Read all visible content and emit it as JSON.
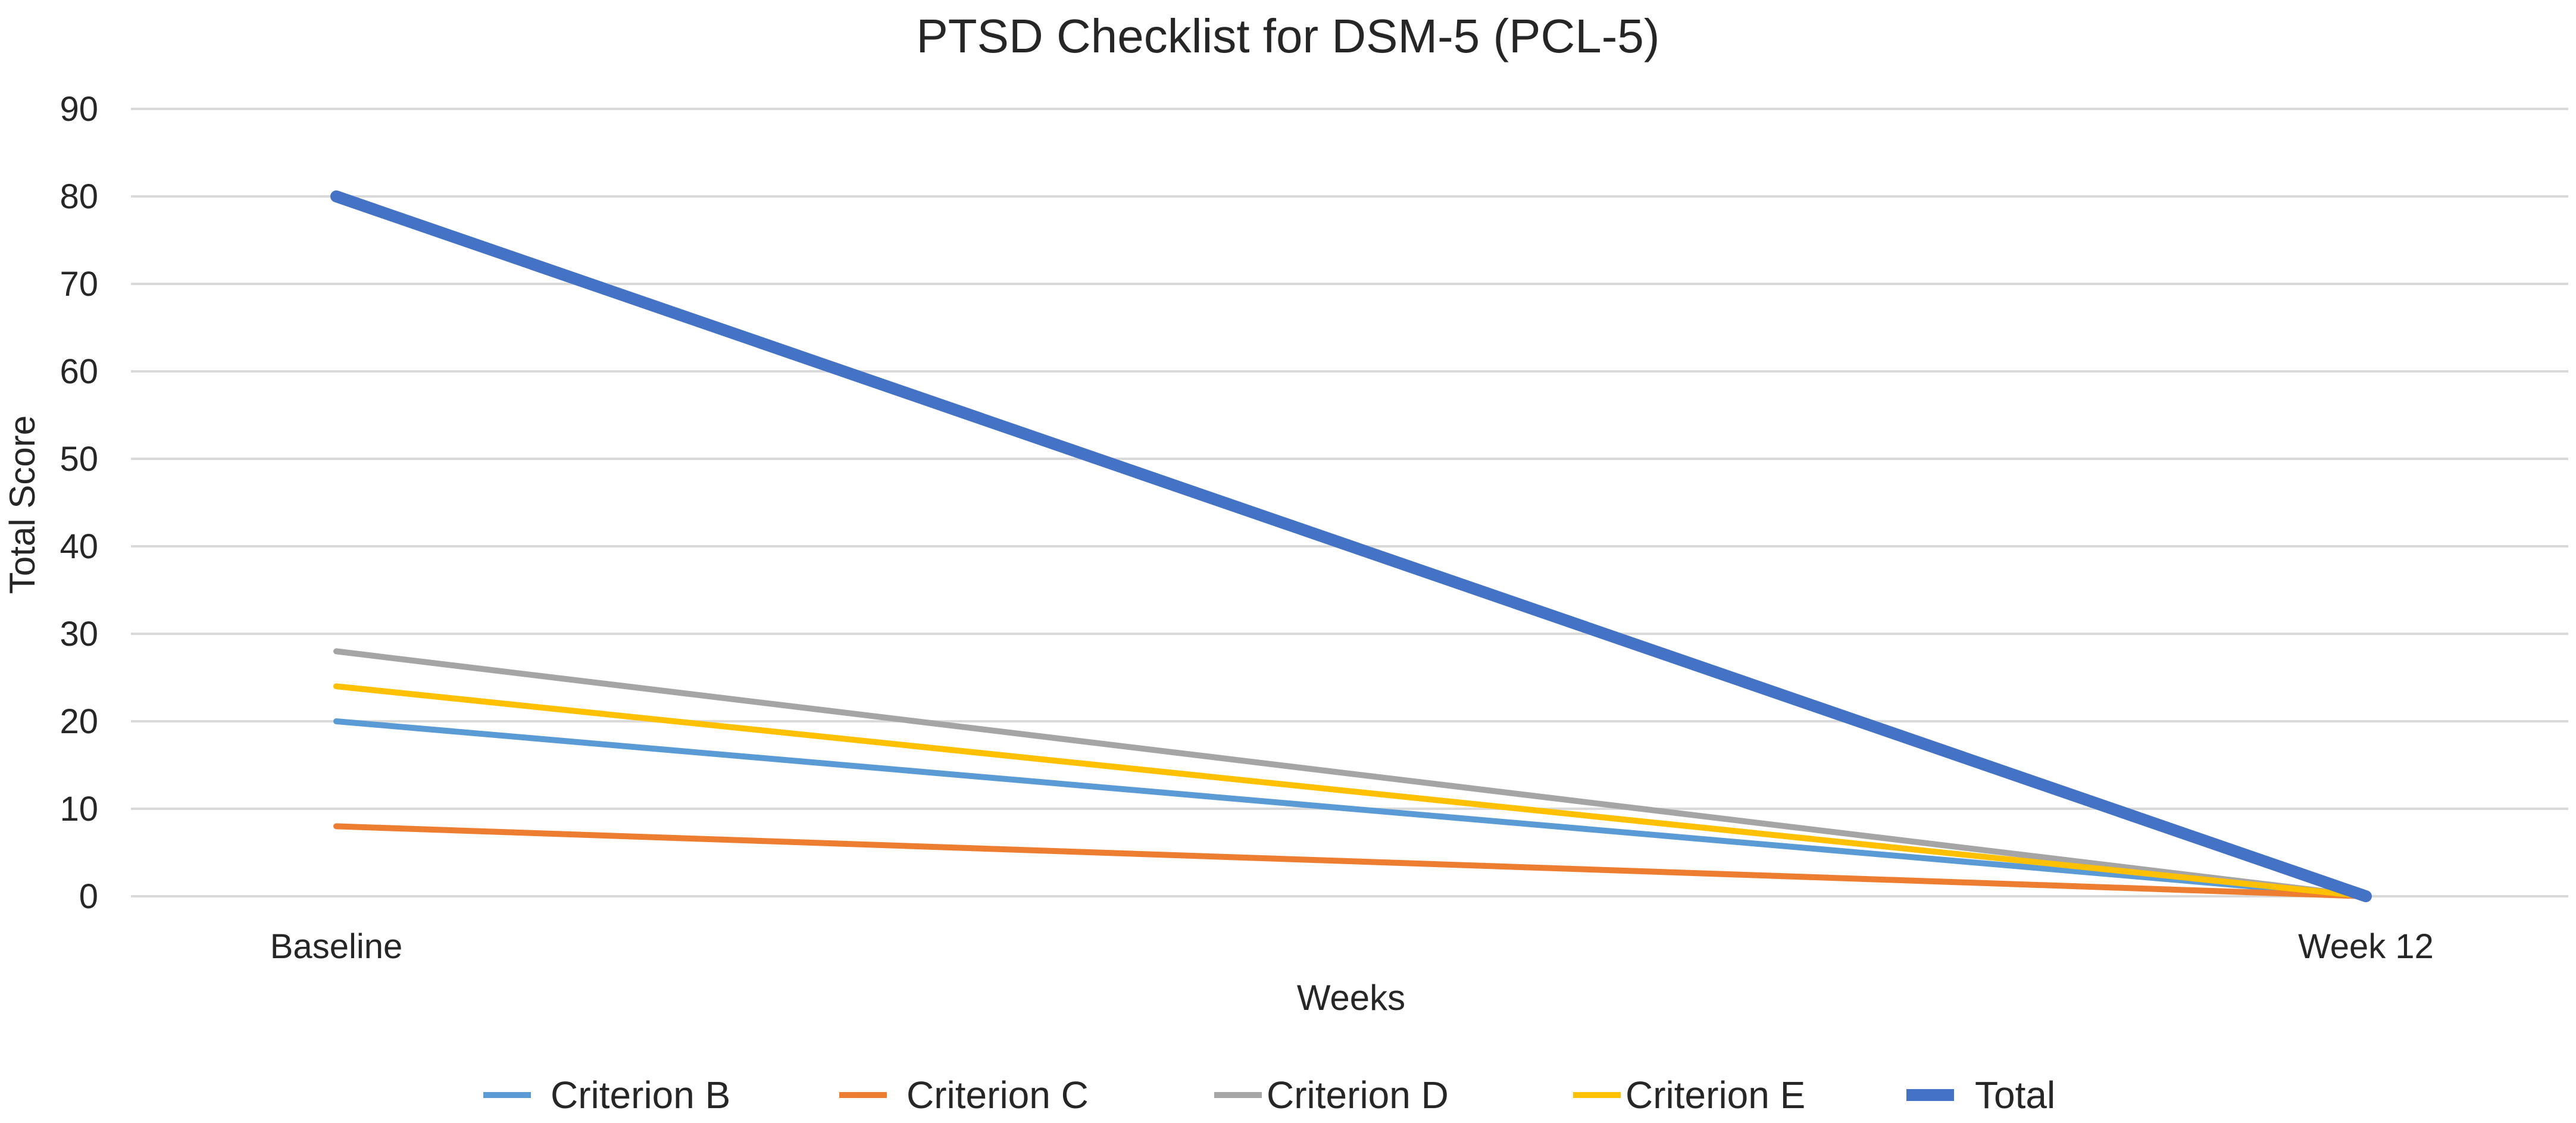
{
  "chart_data": {
    "type": "line",
    "title": "PTSD Checklist for DSM-5 (PCL-5)",
    "xlabel": "Weeks",
    "ylabel": "Total Score",
    "categories": [
      "Baseline",
      "Week 12"
    ],
    "ylim": [
      0,
      90
    ],
    "yticks": [
      0,
      10,
      20,
      30,
      40,
      50,
      60,
      70,
      80,
      90
    ],
    "grid": true,
    "legend_position": "bottom",
    "series": [
      {
        "name": "Criterion B",
        "values": [
          20,
          0
        ],
        "color": "#5b9bd5",
        "weight": "thin"
      },
      {
        "name": "Criterion C",
        "values": [
          8,
          0
        ],
        "color": "#ed7d31",
        "weight": "thin"
      },
      {
        "name": "Criterion D",
        "values": [
          28,
          0
        ],
        "color": "#a5a5a5",
        "weight": "thin"
      },
      {
        "name": "Criterion E",
        "values": [
          24,
          0
        ],
        "color": "#ffc000",
        "weight": "thin"
      },
      {
        "name": "Total",
        "values": [
          80,
          0
        ],
        "color": "#4472c4",
        "weight": "thick"
      }
    ]
  }
}
